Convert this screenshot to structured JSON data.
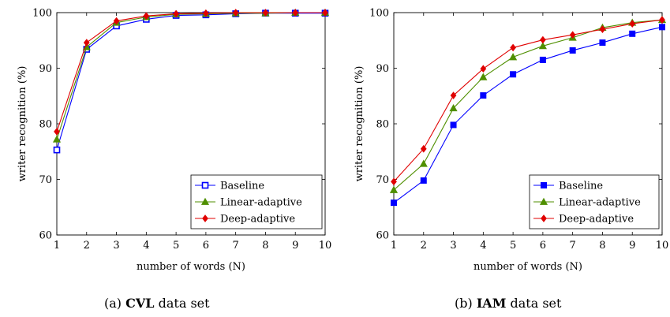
{
  "chart_data": [
    {
      "type": "line",
      "id": "cvl",
      "caption_prefix": "(a) ",
      "caption_bold": "CVL",
      "caption_suffix": " data set",
      "xlabel": "number of words (N)",
      "ylabel": "writer recognition (%)",
      "xlim": [
        1,
        10
      ],
      "ylim": [
        60,
        100
      ],
      "x_ticks": [
        1,
        2,
        3,
        4,
        5,
        6,
        7,
        8,
        9,
        10
      ],
      "y_ticks": [
        60,
        70,
        80,
        90,
        100
      ],
      "legend_position": "bottom-right",
      "marker_style": "open",
      "x": [
        1,
        2,
        3,
        4,
        5,
        6,
        7,
        8,
        9,
        10
      ],
      "series": [
        {
          "name": "Baseline",
          "color": "#0000ff",
          "marker": "square",
          "values": [
            75.3,
            93.4,
            97.6,
            98.8,
            99.5,
            99.6,
            99.8,
            99.9,
            99.9,
            99.9
          ]
        },
        {
          "name": "Linear-adaptive",
          "color": "#4f8f00",
          "marker": "triangle",
          "values": [
            77.2,
            93.8,
            98.2,
            99.2,
            99.7,
            99.8,
            99.9,
            99.9,
            100.0,
            100.0
          ]
        },
        {
          "name": "Deep-adaptive",
          "color": "#e00000",
          "marker": "diamond",
          "values": [
            78.6,
            94.6,
            98.5,
            99.4,
            99.8,
            99.9,
            100.0,
            100.0,
            100.0,
            100.0
          ]
        }
      ]
    },
    {
      "type": "line",
      "id": "iam",
      "caption_prefix": "(b) ",
      "caption_bold": "IAM",
      "caption_suffix": " data set",
      "xlabel": "number of words (N)",
      "ylabel": "writer recognition (%)",
      "xlim": [
        1,
        10
      ],
      "ylim": [
        60,
        100
      ],
      "x_ticks": [
        1,
        2,
        3,
        4,
        5,
        6,
        7,
        8,
        9,
        10
      ],
      "y_ticks": [
        60,
        70,
        80,
        90,
        100
      ],
      "legend_position": "bottom-right",
      "marker_style": "filled",
      "x": [
        1,
        2,
        3,
        4,
        5,
        6,
        7,
        8,
        9,
        10
      ],
      "series": [
        {
          "name": "Baseline",
          "color": "#0000ff",
          "marker": "square",
          "values": [
            65.8,
            69.8,
            79.8,
            85.1,
            88.9,
            91.5,
            93.2,
            94.6,
            96.2,
            97.4
          ]
        },
        {
          "name": "Linear-adaptive",
          "color": "#4f8f00",
          "marker": "triangle",
          "values": [
            68.1,
            72.8,
            82.8,
            88.4,
            92.0,
            94.0,
            95.5,
            97.3,
            98.2,
            98.7
          ]
        },
        {
          "name": "Deep-adaptive",
          "color": "#e00000",
          "marker": "diamond",
          "values": [
            69.6,
            75.5,
            85.1,
            89.9,
            93.7,
            95.1,
            96.0,
            97.0,
            98.0,
            98.7
          ]
        }
      ]
    }
  ]
}
